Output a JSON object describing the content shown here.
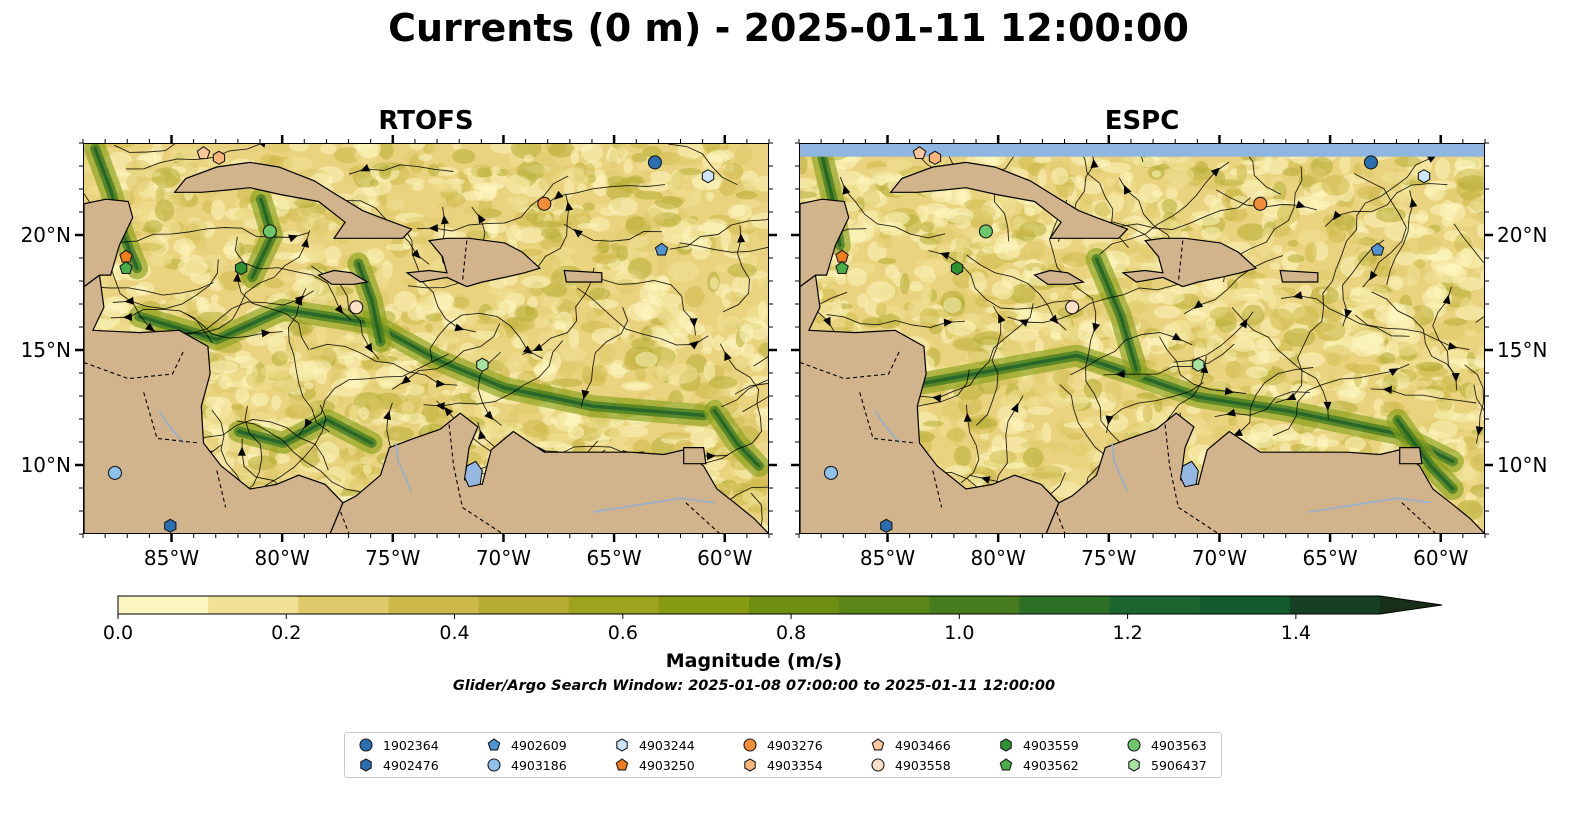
{
  "title": "Currents (0 m) - 2025-01-11 12:00:00",
  "panels": [
    {
      "title": "RTOFS",
      "has_blank_top": false
    },
    {
      "title": "ESPC",
      "has_blank_top": true
    }
  ],
  "map_extent": {
    "lon": [
      -89,
      -58
    ],
    "lat": [
      7,
      24
    ]
  },
  "lon_ticks": [
    {
      "lon": -85,
      "label": "85°W"
    },
    {
      "lon": -80,
      "label": "80°W"
    },
    {
      "lon": -75,
      "label": "75°W"
    },
    {
      "lon": -70,
      "label": "70°W"
    },
    {
      "lon": -65,
      "label": "65°W"
    },
    {
      "lon": -60,
      "label": "60°W"
    }
  ],
  "lat_ticks": [
    {
      "lat": 20,
      "label": "20°N"
    },
    {
      "lat": 15,
      "label": "15°N"
    },
    {
      "lat": 10,
      "label": "10°N"
    }
  ],
  "colorbar": {
    "title": "Magnitude (m/s)",
    "min": 0,
    "max": 1.5,
    "extend": "max",
    "ticks": [
      {
        "value": 0.0,
        "label": "0.0"
      },
      {
        "value": 0.2,
        "label": "0.2"
      },
      {
        "value": 0.4,
        "label": "0.4"
      },
      {
        "value": 0.6,
        "label": "0.6"
      },
      {
        "value": 0.8,
        "label": "0.8"
      },
      {
        "value": 1.0,
        "label": "1.0"
      },
      {
        "value": 1.2,
        "label": "1.2"
      },
      {
        "value": 1.4,
        "label": "1.4"
      }
    ],
    "colors": [
      "#fdf6c0",
      "#f1e196",
      "#dfca6b",
      "#cdb94a",
      "#b7ad35",
      "#9ea322",
      "#869b12",
      "#6f8f12",
      "#5a8618",
      "#467c1e",
      "#2e6f26",
      "#1b6630",
      "#135a2c",
      "#173f23",
      "#1a2f1a"
    ]
  },
  "search_window": "Glider/Argo Search Window: 2025-01-08 07:00:00 to 2025-01-11 12:00:00",
  "colors": {
    "land": "#d2b48c",
    "water_blank": "#8fb6e0",
    "lake": "#94b8e2"
  },
  "floats": [
    {
      "id": "1902364",
      "marker": "circle",
      "color": "#2b6fb3",
      "lon": -63.2,
      "lat": 23.2
    },
    {
      "id": "4902476",
      "marker": "hexagon",
      "color": "#2b6fb3",
      "lon": -85.1,
      "lat": 7.4
    },
    {
      "id": "4902609",
      "marker": "pentagon",
      "color": "#4f93d3",
      "lon": -62.9,
      "lat": 19.4
    },
    {
      "id": "4903186",
      "marker": "circle",
      "color": "#8dc2ec",
      "lon": -87.6,
      "lat": 9.7
    },
    {
      "id": "4903244",
      "marker": "hexagon",
      "color": "#cce6f8",
      "lon": -60.8,
      "lat": 22.6
    },
    {
      "id": "4903250",
      "marker": "pentagon",
      "color": "#f07e1b",
      "lon": -87.1,
      "lat": 19.1
    },
    {
      "id": "4903276",
      "marker": "circle",
      "color": "#f28e3a",
      "lon": -68.2,
      "lat": 21.4
    },
    {
      "id": "4903354",
      "marker": "hexagon",
      "color": "#fbb57a",
      "lon": -82.9,
      "lat": 23.4
    },
    {
      "id": "4903466",
      "marker": "pentagon",
      "color": "#fcc59a",
      "lon": -83.6,
      "lat": 23.6
    },
    {
      "id": "4903558",
      "marker": "circle",
      "color": "#fde0c6",
      "lon": -76.7,
      "lat": 16.9
    },
    {
      "id": "4903559",
      "marker": "hexagon",
      "color": "#2e9433",
      "lon": -81.9,
      "lat": 18.6
    },
    {
      "id": "4903562",
      "marker": "pentagon",
      "color": "#4aae4a",
      "lon": -87.1,
      "lat": 18.6
    },
    {
      "id": "4903563",
      "marker": "circle",
      "color": "#6cc66a",
      "lon": -80.6,
      "lat": 20.2
    },
    {
      "id": "5906437",
      "marker": "hexagon",
      "color": "#a6e3a0",
      "lon": -71.0,
      "lat": 14.4
    }
  ]
}
